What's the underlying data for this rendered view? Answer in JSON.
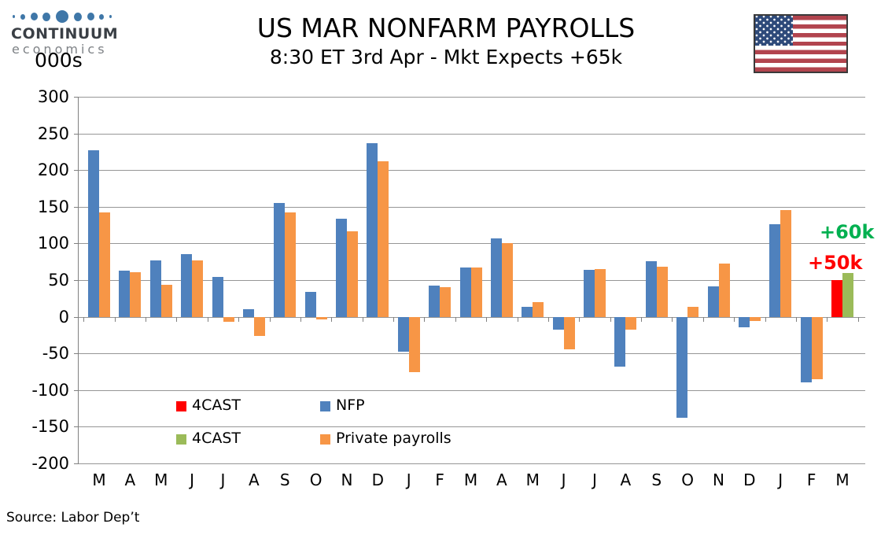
{
  "logo": {
    "line1": "CONTINUUM",
    "line2": "economics"
  },
  "units_label": "000s",
  "header": {
    "title": "US MAR NONFARM PAYROLLS",
    "subtitle": "8:30 ET 3rd Apr - Mkt Expects +65k"
  },
  "legend": [
    {
      "label": "4CAST",
      "color": "#FF0000"
    },
    {
      "label": "NFP",
      "color": "#4F81BD"
    },
    {
      "label": "4CAST",
      "color": "#9BBB59"
    },
    {
      "label": "Private payrolls",
      "color": "#F79646"
    }
  ],
  "annotations": {
    "green_text": "+60k",
    "green_color": "#00B050",
    "red_text": "+50k",
    "red_color": "#FF0000"
  },
  "source": "Source: Labor Dep’t",
  "chart_data": {
    "type": "bar",
    "title": "US MAR NONFARM PAYROLLS",
    "subtitle": "8:30 ET 3rd Apr - Mkt Expects +65k",
    "ylabel": "000s",
    "ylim": [
      -200,
      300
    ],
    "yticks": [
      300,
      250,
      200,
      150,
      100,
      50,
      0,
      -50,
      -100,
      -150,
      -200
    ],
    "grid": true,
    "legend_position": "inside-bottom-left",
    "categories": [
      "M",
      "A",
      "M",
      "J",
      "J",
      "A",
      "S",
      "O",
      "N",
      "D",
      "J",
      "F",
      "M",
      "A",
      "M",
      "J",
      "J",
      "A",
      "S",
      "O",
      "N",
      "D",
      "J",
      "F",
      "M"
    ],
    "series": [
      {
        "name": "NFP",
        "color": "#4F81BD",
        "values": [
          227,
          63,
          77,
          85,
          54,
          10,
          155,
          34,
          134,
          237,
          -48,
          42,
          67,
          107,
          13,
          -18,
          64,
          -68,
          76,
          -138,
          41,
          -14,
          126,
          -90,
          null
        ]
      },
      {
        "name": "Private payrolls",
        "color": "#F79646",
        "values": [
          142,
          61,
          44,
          77,
          -7,
          -26,
          142,
          -4,
          116,
          212,
          -76,
          40,
          67,
          100,
          20,
          -44,
          65,
          -18,
          68,
          13,
          72,
          -6,
          146,
          -85,
          null
        ]
      },
      {
        "name": "4CAST NFP",
        "color": "#FF0000",
        "values": [
          null,
          null,
          null,
          null,
          null,
          null,
          null,
          null,
          null,
          null,
          null,
          null,
          null,
          null,
          null,
          null,
          null,
          null,
          null,
          null,
          null,
          null,
          null,
          null,
          50
        ]
      },
      {
        "name": "4CAST Private payrolls",
        "color": "#9BBB59",
        "values": [
          null,
          null,
          null,
          null,
          null,
          null,
          null,
          null,
          null,
          null,
          null,
          null,
          null,
          null,
          null,
          null,
          null,
          null,
          null,
          null,
          null,
          null,
          null,
          null,
          60
        ]
      }
    ]
  }
}
